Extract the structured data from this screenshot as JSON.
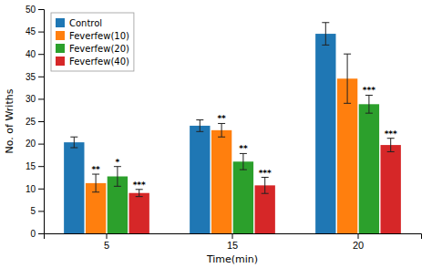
{
  "chart_data": {
    "type": "bar",
    "categories": [
      "5",
      "15",
      "20"
    ],
    "xlabel": "Time(min)",
    "ylabel": "No. of Wriths",
    "series": [
      {
        "name": "Control",
        "values": [
          20.3,
          24.0,
          44.5
        ],
        "errors": [
          1.2,
          1.3,
          2.5
        ],
        "significance": [
          null,
          null,
          null
        ]
      },
      {
        "name": "Feverfew(10)",
        "values": [
          11.2,
          23.0,
          34.5
        ],
        "errors": [
          2.0,
          1.5,
          5.5
        ],
        "significance": [
          "**",
          "**",
          null
        ]
      },
      {
        "name": "Feverfew(20)",
        "values": [
          12.7,
          16.0,
          28.8
        ],
        "errors": [
          2.2,
          1.8,
          2.0
        ],
        "significance": [
          "*",
          "**",
          "***"
        ]
      },
      {
        "name": "Feverfew(40)",
        "values": [
          9.0,
          10.7,
          19.7
        ],
        "errors": [
          0.8,
          1.8,
          1.5
        ],
        "significance": [
          "***",
          "***",
          "***"
        ]
      }
    ],
    "ylim": [
      0,
      50
    ],
    "yticks": [
      0,
      5,
      10,
      15,
      20,
      25,
      30,
      35,
      40,
      45,
      50
    ],
    "legend": "upper-left",
    "grid": false
  }
}
